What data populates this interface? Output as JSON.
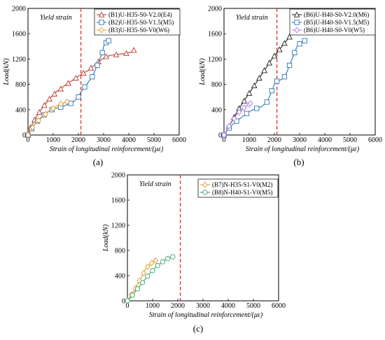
{
  "chart_data": [
    {
      "type": "line",
      "panel_label": "(a)",
      "xlabel": "Strain of longitudinal reinforcement/(με)",
      "ylabel": "Load(kN)",
      "xlim": [
        0,
        6000
      ],
      "ylim": [
        0,
        2000
      ],
      "xticks": [
        0,
        1000,
        2000,
        3000,
        4000,
        5000,
        6000
      ],
      "yticks": [
        0,
        400,
        800,
        1200,
        1600,
        2000
      ],
      "grid": false,
      "legend_position": "top-right",
      "annotation": "Yield strain",
      "yield_strain": 2100,
      "series": [
        {
          "name": "(B1)U-H35-S0-V2.0(E4)",
          "color": "#c0392b",
          "marker": "triangle",
          "points": [
            [
              0,
              0
            ],
            [
              50,
              60
            ],
            [
              100,
              120
            ],
            [
              180,
              180
            ],
            [
              260,
              240
            ],
            [
              350,
              300
            ],
            [
              450,
              360
            ],
            [
              550,
              420
            ],
            [
              650,
              470
            ],
            [
              750,
              520
            ],
            [
              850,
              570
            ],
            [
              950,
              610
            ],
            [
              1050,
              650
            ],
            [
              1150,
              690
            ],
            [
              1300,
              730
            ],
            [
              1450,
              780
            ],
            [
              1600,
              820
            ],
            [
              1750,
              860
            ],
            [
              1900,
              900
            ],
            [
              2050,
              940
            ],
            [
              2200,
              980
            ],
            [
              2350,
              1010
            ],
            [
              2500,
              1060
            ],
            [
              2650,
              1110
            ],
            [
              2800,
              1160
            ],
            [
              2950,
              1200
            ],
            [
              3100,
              1240
            ],
            [
              3300,
              1260
            ],
            [
              3500,
              1270
            ],
            [
              3700,
              1280
            ],
            [
              3900,
              1290
            ],
            [
              4100,
              1310
            ],
            [
              4200,
              1340
            ]
          ]
        },
        {
          "name": "(B2)U-H35-S0-V1.5(M5)",
          "color": "#2e75b6",
          "marker": "square",
          "points": [
            [
              0,
              0
            ],
            [
              60,
              50
            ],
            [
              150,
              100
            ],
            [
              250,
              160
            ],
            [
              380,
              220
            ],
            [
              500,
              270
            ],
            [
              650,
              320
            ],
            [
              800,
              370
            ],
            [
              950,
              400
            ],
            [
              1100,
              420
            ],
            [
              1300,
              440
            ],
            [
              1500,
              470
            ],
            [
              1700,
              500
            ],
            [
              1850,
              540
            ],
            [
              2000,
              600
            ],
            [
              2100,
              680
            ],
            [
              2250,
              760
            ],
            [
              2400,
              840
            ],
            [
              2550,
              920
            ],
            [
              2650,
              1010
            ],
            [
              2750,
              1100
            ],
            [
              2850,
              1200
            ],
            [
              2950,
              1300
            ],
            [
              3000,
              1400
            ],
            [
              3100,
              1460
            ],
            [
              3200,
              1490
            ]
          ]
        },
        {
          "name": "(B3)U-H35-S0-V0(W6)",
          "color": "#e39b2a",
          "marker": "diamond",
          "points": [
            [
              0,
              0
            ],
            [
              80,
              60
            ],
            [
              180,
              120
            ],
            [
              300,
              180
            ],
            [
              420,
              230
            ],
            [
              560,
              280
            ],
            [
              700,
              330
            ],
            [
              850,
              380
            ],
            [
              1000,
              420
            ],
            [
              1150,
              460
            ],
            [
              1300,
              490
            ],
            [
              1450,
              510
            ],
            [
              1550,
              525
            ]
          ]
        }
      ]
    },
    {
      "type": "line",
      "panel_label": "(b)",
      "xlabel": "Strain of longitudinal reinforcement/(με)",
      "ylabel": "Load(kN)",
      "xlim": [
        0,
        6000
      ],
      "ylim": [
        0,
        2000
      ],
      "xticks": [
        0,
        1000,
        2000,
        3000,
        4000,
        5000,
        6000
      ],
      "yticks": [
        0,
        400,
        800,
        1200,
        1600,
        2000
      ],
      "grid": false,
      "legend_position": "top-right",
      "annotation": "Yield strain",
      "yield_strain": 2100,
      "series": [
        {
          "name": "(B6)U-H40-S0-V2.0(M6)",
          "color": "#222222",
          "marker": "triangle",
          "points": [
            [
              0,
              0
            ],
            [
              100,
              70
            ],
            [
              200,
              140
            ],
            [
              300,
              210
            ],
            [
              400,
              280
            ],
            [
              500,
              350
            ],
            [
              600,
              420
            ],
            [
              700,
              480
            ],
            [
              800,
              540
            ],
            [
              900,
              600
            ],
            [
              1000,
              660
            ],
            [
              1100,
              720
            ],
            [
              1200,
              780
            ],
            [
              1300,
              840
            ],
            [
              1400,
              900
            ],
            [
              1500,
              960
            ],
            [
              1600,
              1020
            ],
            [
              1700,
              1080
            ],
            [
              1800,
              1140
            ],
            [
              1900,
              1200
            ],
            [
              2000,
              1250
            ],
            [
              2100,
              1300
            ],
            [
              2200,
              1350
            ],
            [
              2300,
              1400
            ],
            [
              2400,
              1450
            ],
            [
              2500,
              1500
            ],
            [
              2600,
              1550
            ]
          ]
        },
        {
          "name": "(B5)U-H40-S0-V1.5(M5)",
          "color": "#2e75b6",
          "marker": "square",
          "points": [
            [
              0,
              0
            ],
            [
              100,
              60
            ],
            [
              200,
              110
            ],
            [
              350,
              170
            ],
            [
              500,
              220
            ],
            [
              700,
              280
            ],
            [
              900,
              340
            ],
            [
              1100,
              390
            ],
            [
              1300,
              420
            ],
            [
              1500,
              450
            ],
            [
              1700,
              520
            ],
            [
              1800,
              600
            ],
            [
              1900,
              700
            ],
            [
              2000,
              800
            ],
            [
              2100,
              850
            ],
            [
              2300,
              880
            ],
            [
              2400,
              920
            ],
            [
              2500,
              1000
            ],
            [
              2600,
              1100
            ],
            [
              2700,
              1200
            ],
            [
              2800,
              1300
            ],
            [
              2900,
              1400
            ],
            [
              3000,
              1440
            ],
            [
              3100,
              1470
            ],
            [
              3200,
              1490
            ]
          ]
        },
        {
          "name": "(B6)U-H40-S0-V0(W5)",
          "color": "#b07cd8",
          "marker": "diamond",
          "points": [
            [
              0,
              0
            ],
            [
              100,
              70
            ],
            [
              200,
              140
            ],
            [
              300,
              200
            ],
            [
              400,
              260
            ],
            [
              500,
              320
            ],
            [
              600,
              360
            ],
            [
              700,
              400
            ],
            [
              800,
              430
            ],
            [
              900,
              460
            ],
            [
              1000,
              480
            ],
            [
              1050,
              500
            ]
          ]
        }
      ]
    },
    {
      "type": "line",
      "panel_label": "(c)",
      "xlabel": "Strain of longitudinal reinforcement/(με)",
      "ylabel": "Load(kN)",
      "xlim": [
        0,
        6000
      ],
      "ylim": [
        0,
        2000
      ],
      "xticks": [
        0,
        1000,
        2000,
        3000,
        4000,
        5000,
        6000
      ],
      "yticks": [
        0,
        400,
        800,
        1200,
        1600,
        2000
      ],
      "grid": false,
      "legend_position": "top-right",
      "annotation": "Yield strain",
      "yield_strain": 2100,
      "series": [
        {
          "name": "(B7)N-H35-S1-V0(M2)",
          "color": "#e39b2a",
          "marker": "diamond",
          "points": [
            [
              0,
              0
            ],
            [
              80,
              50
            ],
            [
              160,
              100
            ],
            [
              240,
              150
            ],
            [
              320,
              200
            ],
            [
              400,
              260
            ],
            [
              480,
              320
            ],
            [
              560,
              380
            ],
            [
              640,
              440
            ],
            [
              720,
              500
            ],
            [
              800,
              540
            ],
            [
              880,
              570
            ],
            [
              960,
              600
            ],
            [
              1040,
              620
            ],
            [
              1120,
              640
            ]
          ]
        },
        {
          "name": "(B8)N-H40-S1-V0(M5)",
          "color": "#3aa26b",
          "marker": "circle",
          "points": [
            [
              0,
              0
            ],
            [
              100,
              40
            ],
            [
              200,
              90
            ],
            [
              300,
              140
            ],
            [
              400,
              190
            ],
            [
              500,
              240
            ],
            [
              600,
              290
            ],
            [
              700,
              340
            ],
            [
              800,
              390
            ],
            [
              900,
              440
            ],
            [
              1000,
              480
            ],
            [
              1100,
              520
            ],
            [
              1200,
              560
            ],
            [
              1300,
              590
            ],
            [
              1400,
              620
            ],
            [
              1500,
              650
            ],
            [
              1600,
              670
            ],
            [
              1700,
              690
            ],
            [
              1800,
              700
            ]
          ]
        }
      ]
    }
  ]
}
